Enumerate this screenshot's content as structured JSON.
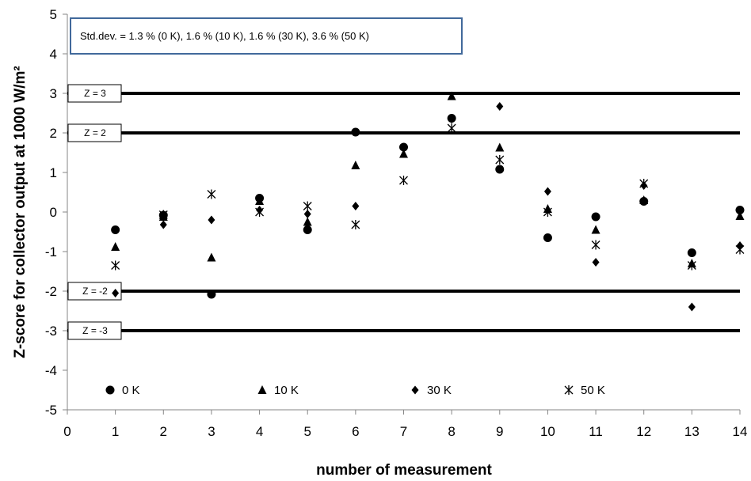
{
  "chart_data": {
    "type": "scatter",
    "xlabel": "number of measurement",
    "ylabel": "Z-score for collector output at 1000 W/m²",
    "xlim": [
      0,
      14
    ],
    "ylim": [
      -5,
      5
    ],
    "x_ticks": [
      "0",
      "1",
      "2",
      "3",
      "4",
      "5",
      "6",
      "7",
      "8",
      "9",
      "10",
      "11",
      "12",
      "13",
      "14"
    ],
    "y_ticks": [
      "5",
      "4",
      "3",
      "2",
      "1",
      "0",
      "-1",
      "-2",
      "-3",
      "-4",
      "-5"
    ],
    "note": "Std.dev. = 1.3 % (0 K), 1.6 % (10 K), 1.6 % (30 K), 3.6 % (50 K)",
    "reference_lines": [
      {
        "label": "Z = 3",
        "y": 3
      },
      {
        "label": "Z = 2",
        "y": 2
      },
      {
        "label": "Z = -2",
        "y": -2
      },
      {
        "label": "Z = -3",
        "y": -3
      }
    ],
    "legend_position": "bottom",
    "series": [
      {
        "name": "0 K",
        "marker": "circle",
        "x": [
          1,
          2,
          3,
          4,
          5,
          6,
          7,
          8,
          9,
          10,
          11,
          12,
          13,
          14
        ],
        "y": [
          -0.45,
          -0.08,
          -2.08,
          0.35,
          -0.45,
          2.02,
          1.64,
          2.37,
          1.08,
          -0.65,
          -0.12,
          0.27,
          -1.03,
          0.05
        ]
      },
      {
        "name": "10 K",
        "marker": "triangle",
        "x": [
          1,
          2,
          3,
          4,
          5,
          6,
          7,
          8,
          9,
          10,
          11,
          12,
          13,
          14
        ],
        "y": [
          -0.88,
          -0.12,
          -1.15,
          0.28,
          -0.25,
          1.18,
          1.47,
          2.93,
          1.63,
          0.08,
          -0.45,
          0.3,
          -1.3,
          -0.1
        ]
      },
      {
        "name": "30 K",
        "marker": "diamond",
        "x": [
          1,
          2,
          3,
          4,
          5,
          6,
          7,
          8,
          9,
          10,
          11,
          12,
          13,
          14
        ],
        "y": [
          -2.05,
          -0.32,
          -0.2,
          0.05,
          -0.05,
          0.15,
          1.62,
          2.35,
          2.67,
          0.52,
          -1.27,
          0.67,
          -2.4,
          -0.85
        ]
      },
      {
        "name": "50 K",
        "marker": "star",
        "x": [
          1,
          2,
          3,
          4,
          5,
          6,
          7,
          8,
          9,
          10,
          11,
          12,
          13,
          14
        ],
        "y": [
          -1.35,
          -0.07,
          0.45,
          0.0,
          0.15,
          -0.32,
          0.8,
          2.12,
          1.32,
          0.0,
          -0.83,
          0.72,
          -1.35,
          -0.95
        ]
      }
    ]
  }
}
